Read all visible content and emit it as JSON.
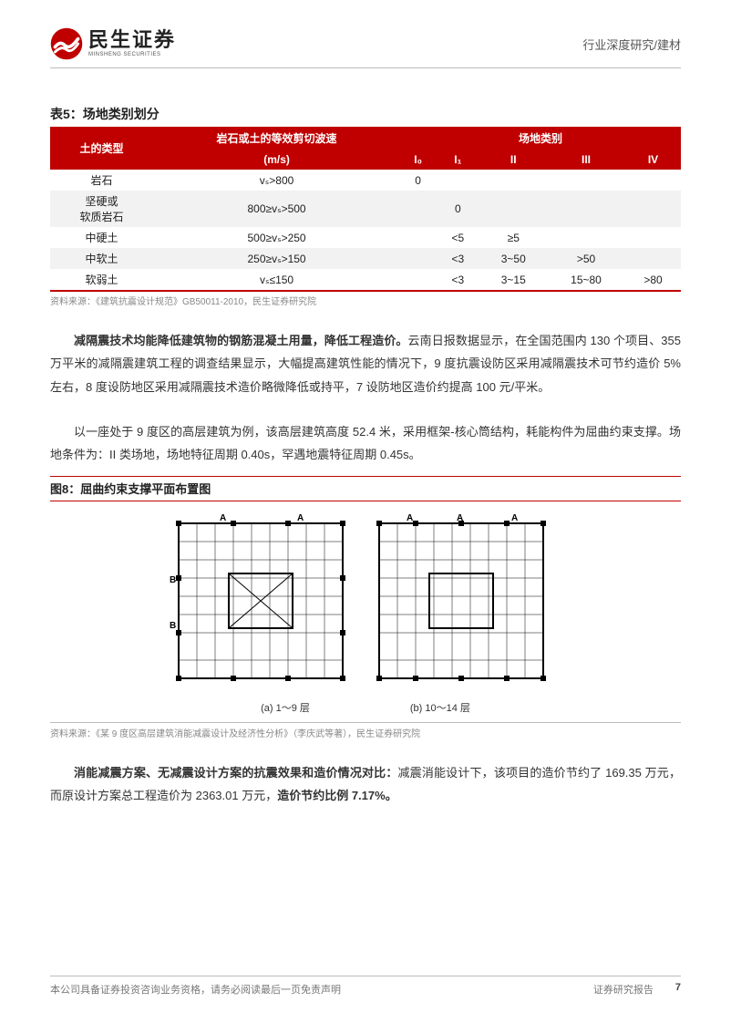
{
  "header": {
    "logo_cn": "民生证券",
    "logo_en": "MINSHENG SECURITIES",
    "right_text": "行业深度研究/建材"
  },
  "table5": {
    "title": "表5：场地类别划分",
    "source": "资料来源：《建筑抗震设计规范》GB50011-2010，民生证券研究院",
    "header_row1": {
      "soil_type": "土的类型",
      "wave_speed": "岩石或土的等效剪切波速",
      "site_class": "场地类别"
    },
    "header_row2": {
      "wave_unit": "(m/s)",
      "c0": "I₀",
      "c1": "I₁",
      "c2": "II",
      "c3": "III",
      "c4": "IV"
    },
    "rows": [
      {
        "type": "岩石",
        "speed": "vₛ>800",
        "I0": "0",
        "I1": "",
        "II": "",
        "III": "",
        "IV": ""
      },
      {
        "type": "坚硬或\n软质岩石",
        "speed": "800≥vₛ>500",
        "I0": "",
        "I1": "0",
        "II": "",
        "III": "",
        "IV": ""
      },
      {
        "type": "中硬土",
        "speed": "500≥vₛ>250",
        "I0": "",
        "I1": "<5",
        "II": "≥5",
        "III": "",
        "IV": ""
      },
      {
        "type": "中软土",
        "speed": "250≥vₛ>150",
        "I0": "",
        "I1": "<3",
        "II": "3~50",
        "III": ">50",
        "IV": ""
      },
      {
        "type": "软弱土",
        "speed": "vₛ≤150",
        "I0": "",
        "I1": "<3",
        "II": "3~15",
        "III": "15~80",
        "IV": ">80"
      }
    ]
  },
  "para1": {
    "bold": "减隔震技术均能降低建筑物的钢筋混凝土用量，降低工程造价。",
    "rest": "云南日报数据显示，在全国范围内 130 个项目、355 万平米的减隔震建筑工程的调查结果显示，大幅提高建筑性能的情况下，9 度抗震设防区采用减隔震技术可节约造价 5%左右，8 度设防地区采用减隔震技术造价略微降低或持平，7 设防地区造价约提高 100 元/平米。"
  },
  "para2": "以一座处于 9 度区的高层建筑为例，该高层建筑高度 52.4 米，采用框架-核心筒结构，耗能构件为屈曲约束支撑。场地条件为：II 类场地，场地特征周期 0.40s，罕遇地震特征周期 0.45s。",
  "figure8": {
    "title": "图8：屈曲约束支撑平面布置图",
    "caption_a": "(a) 1～9 层",
    "caption_b": "(b) 10～14 层",
    "source": "资料来源：《某 9 度区高层建筑消能减震设计及经济性分析》（李庆武等著），民生证券研究院"
  },
  "para3": {
    "bold1": "消能减震方案、无减震设计方案的抗震效果和造价情况对比：",
    "mid": "减震消能设计下，该项目的造价节约了 169.35 万元，而原设计方案总工程造价为 2363.01 万元，",
    "bold2": "造价节约比例 7.17%。"
  },
  "footer": {
    "left": "本公司具备证券投资咨询业务资格，请务必阅读最后一页免责声明",
    "right_label": "证券研究报告",
    "page": "7"
  },
  "colors": {
    "brand_red": "#c00000",
    "text": "#333333",
    "border": "#bbbbbb",
    "stripe": "#f2f2f2"
  }
}
